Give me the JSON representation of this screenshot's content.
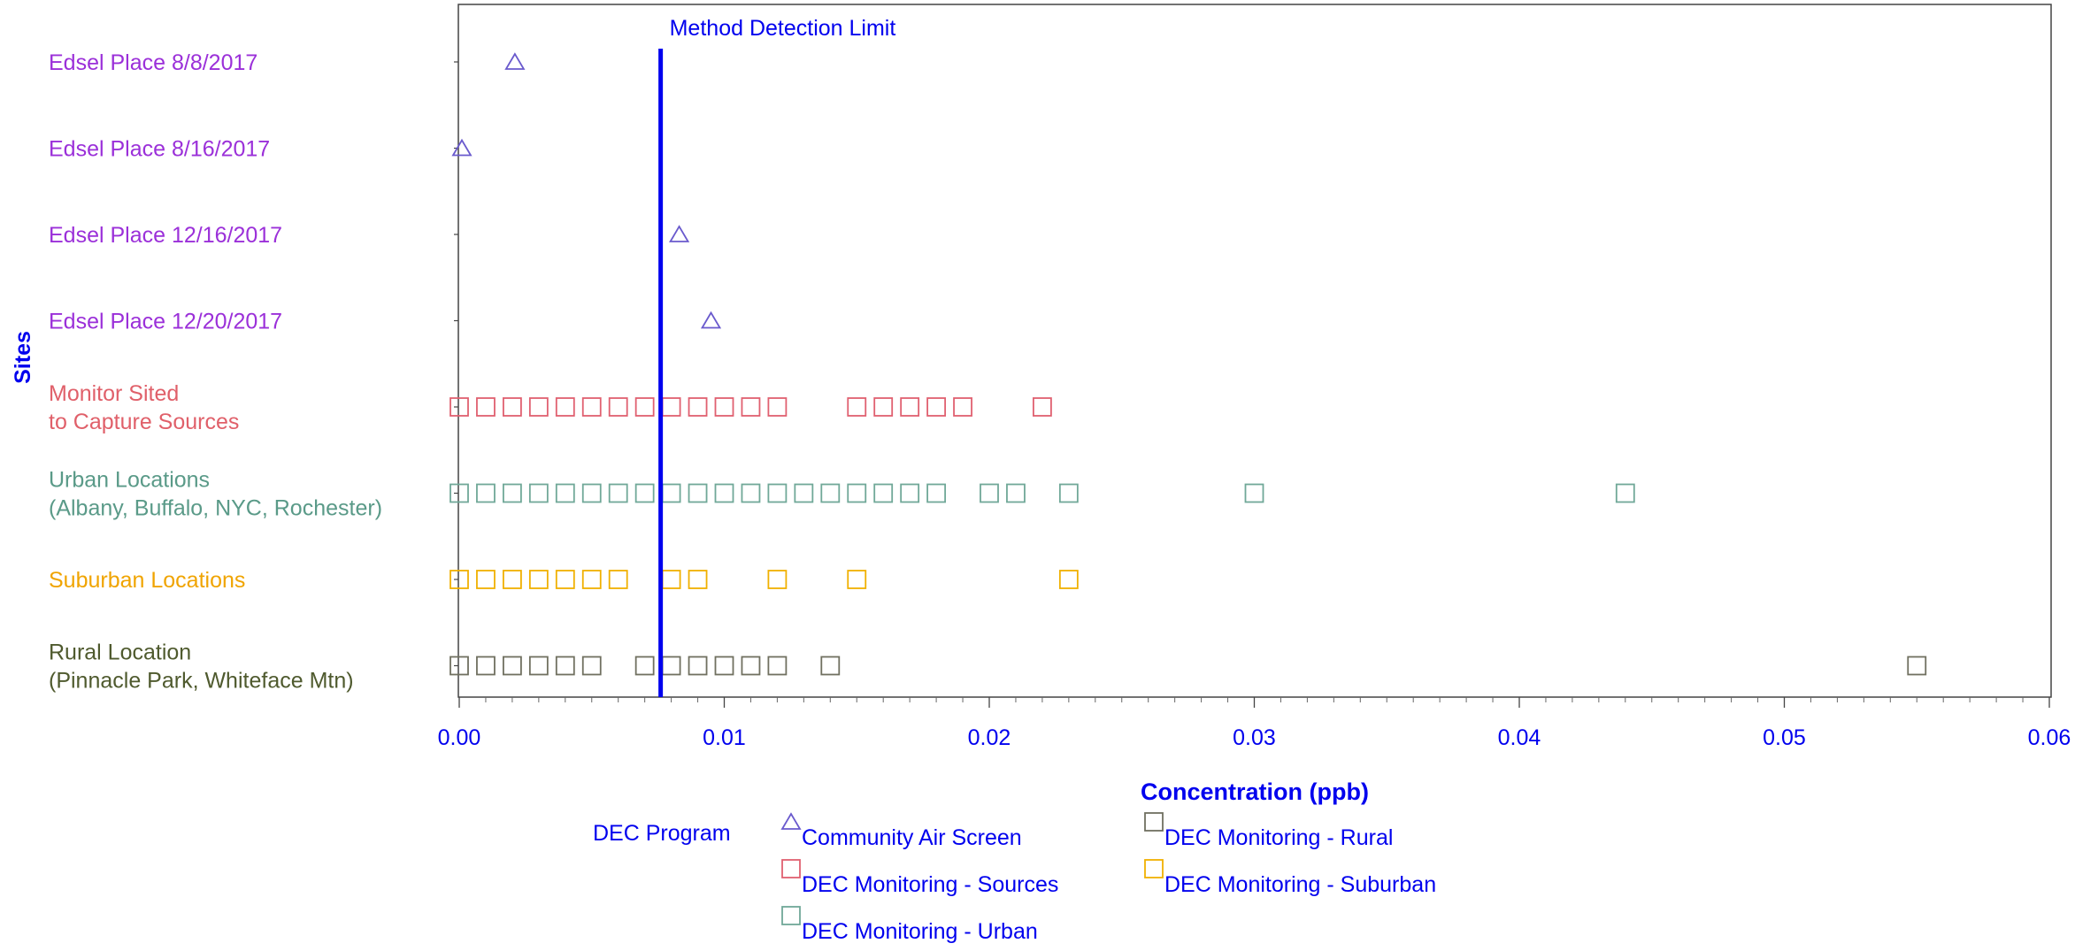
{
  "chart_data": {
    "type": "scatter",
    "title": "",
    "xlabel": "Concentration (ppb)",
    "ylabel": "Sites",
    "xlim": [
      0,
      0.06
    ],
    "x_ticks": [
      "0.00",
      "0.01",
      "0.02",
      "0.03",
      "0.04",
      "0.05",
      "0.06"
    ],
    "x_tick_values": [
      0,
      0.01,
      0.02,
      0.03,
      0.04,
      0.05,
      0.06
    ],
    "reference_line": {
      "x": 0.0076,
      "label": "Method Detection Limit",
      "color": "#0000ee"
    },
    "categories": [
      {
        "lines": [
          "Edsel Place 8/8/2017"
        ],
        "color": "#9b30d9"
      },
      {
        "lines": [
          "Edsel Place 8/16/2017"
        ],
        "color": "#9b30d9"
      },
      {
        "lines": [
          "Edsel Place 12/16/2017"
        ],
        "color": "#9b30d9"
      },
      {
        "lines": [
          "Edsel Place 12/20/2017"
        ],
        "color": "#9b30d9"
      },
      {
        "lines": [
          "Monitor Sited",
          "to Capture Sources"
        ],
        "color": "#e0606a"
      },
      {
        "lines": [
          "Urban Locations",
          "(Albany, Buffalo, NYC, Rochester)"
        ],
        "color": "#5a9a88"
      },
      {
        "lines": [
          "Suburban Locations"
        ],
        "color": "#f0a400"
      },
      {
        "lines": [
          "Rural Location",
          "(Pinnacle Park, Whiteface Mtn)"
        ],
        "color": "#4f5a2e"
      }
    ],
    "series": [
      {
        "name": "Community Air Screen",
        "marker": "triangle",
        "color": "#6a5acd",
        "points": [
          [
            0.0021,
            0
          ],
          [
            0.0001,
            1
          ],
          [
            0.0083,
            2
          ],
          [
            0.0095,
            3
          ]
        ]
      },
      {
        "name": "DEC Monitoring - Sources",
        "marker": "square",
        "color": "#e06070",
        "points": [
          [
            0.0,
            4
          ],
          [
            0.001,
            4
          ],
          [
            0.002,
            4
          ],
          [
            0.003,
            4
          ],
          [
            0.004,
            4
          ],
          [
            0.005,
            4
          ],
          [
            0.006,
            4
          ],
          [
            0.007,
            4
          ],
          [
            0.008,
            4
          ],
          [
            0.009,
            4
          ],
          [
            0.01,
            4
          ],
          [
            0.011,
            4
          ],
          [
            0.012,
            4
          ],
          [
            0.015,
            4
          ],
          [
            0.016,
            4
          ],
          [
            0.017,
            4
          ],
          [
            0.018,
            4
          ],
          [
            0.019,
            4
          ],
          [
            0.022,
            4
          ]
        ]
      },
      {
        "name": "DEC Monitoring - Urban",
        "marker": "square",
        "color": "#70a898",
        "points": [
          [
            0.0,
            5
          ],
          [
            0.001,
            5
          ],
          [
            0.002,
            5
          ],
          [
            0.003,
            5
          ],
          [
            0.004,
            5
          ],
          [
            0.005,
            5
          ],
          [
            0.006,
            5
          ],
          [
            0.007,
            5
          ],
          [
            0.008,
            5
          ],
          [
            0.009,
            5
          ],
          [
            0.01,
            5
          ],
          [
            0.011,
            5
          ],
          [
            0.012,
            5
          ],
          [
            0.013,
            5
          ],
          [
            0.014,
            5
          ],
          [
            0.015,
            5
          ],
          [
            0.016,
            5
          ],
          [
            0.017,
            5
          ],
          [
            0.018,
            5
          ],
          [
            0.02,
            5
          ],
          [
            0.021,
            5
          ],
          [
            0.023,
            5
          ],
          [
            0.03,
            5
          ],
          [
            0.044,
            5
          ]
        ]
      },
      {
        "name": "DEC Monitoring - Suburban",
        "marker": "square",
        "color": "#f0b000",
        "points": [
          [
            0.0,
            6
          ],
          [
            0.001,
            6
          ],
          [
            0.002,
            6
          ],
          [
            0.003,
            6
          ],
          [
            0.004,
            6
          ],
          [
            0.005,
            6
          ],
          [
            0.006,
            6
          ],
          [
            0.008,
            6
          ],
          [
            0.009,
            6
          ],
          [
            0.012,
            6
          ],
          [
            0.015,
            6
          ],
          [
            0.023,
            6
          ]
        ]
      },
      {
        "name": "DEC Monitoring - Rural",
        "marker": "square",
        "color": "#707060",
        "points": [
          [
            0.0,
            7
          ],
          [
            0.001,
            7
          ],
          [
            0.002,
            7
          ],
          [
            0.003,
            7
          ],
          [
            0.004,
            7
          ],
          [
            0.005,
            7
          ],
          [
            0.007,
            7
          ],
          [
            0.008,
            7
          ],
          [
            0.009,
            7
          ],
          [
            0.01,
            7
          ],
          [
            0.011,
            7
          ],
          [
            0.012,
            7
          ],
          [
            0.014,
            7
          ],
          [
            0.055,
            7
          ]
        ]
      }
    ],
    "legend": {
      "title": "DEC Program",
      "placement": "bottom",
      "entries": [
        {
          "series": "Community Air Screen",
          "label": "Community Air Screen"
        },
        {
          "series": "DEC Monitoring - Rural",
          "label": "DEC Monitoring - Rural"
        },
        {
          "series": "DEC Monitoring - Sources",
          "label": "DEC Monitoring - Sources"
        },
        {
          "series": "DEC Monitoring - Suburban",
          "label": "DEC Monitoring - Suburban"
        },
        {
          "series": "DEC Monitoring - Urban",
          "label": "DEC Monitoring - Urban"
        }
      ]
    },
    "axis_color": "#0000ee",
    "grid": false
  }
}
